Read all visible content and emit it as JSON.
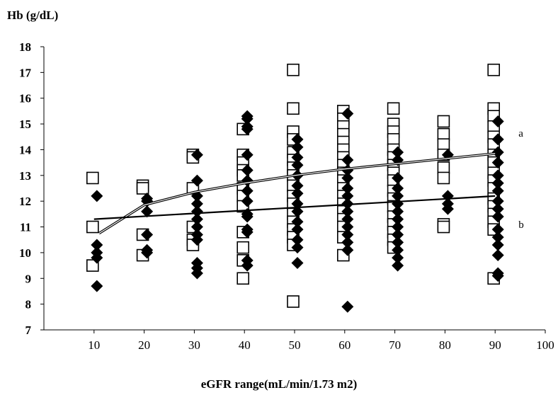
{
  "chart_data": {
    "type": "scatter",
    "title": "",
    "ylabel": "Hb (g/dL)",
    "xlabel": "eGFR range(mL/min/1.73 m2)",
    "xlim": [
      0,
      100
    ],
    "ylim": [
      7,
      18
    ],
    "xticks": [
      10,
      20,
      30,
      40,
      50,
      60,
      70,
      80,
      90,
      100
    ],
    "yticks": [
      7,
      8,
      9,
      10,
      11,
      12,
      13,
      14,
      15,
      16,
      17,
      18
    ],
    "grid": false,
    "legend": "none",
    "series": [
      {
        "marker": "open-square",
        "color": "#000000",
        "points": [
          [
            10,
            12.9
          ],
          [
            10,
            11.0
          ],
          [
            10,
            9.5
          ],
          [
            20,
            12.6
          ],
          [
            20,
            12.5
          ],
          [
            20,
            10.7
          ],
          [
            20,
            9.9
          ],
          [
            30,
            13.8
          ],
          [
            30,
            13.7
          ],
          [
            30,
            12.5
          ],
          [
            30,
            11.0
          ],
          [
            30,
            10.5
          ],
          [
            30,
            10.3
          ],
          [
            40,
            14.8
          ],
          [
            40,
            13.8
          ],
          [
            40,
            13.5
          ],
          [
            40,
            13.2
          ],
          [
            40,
            13.0
          ],
          [
            40,
            12.5
          ],
          [
            40,
            12.2
          ],
          [
            40,
            11.8
          ],
          [
            40,
            10.8
          ],
          [
            40,
            10.2
          ],
          [
            40,
            9.7
          ],
          [
            40,
            9.0
          ],
          [
            50,
            17.1
          ],
          [
            50,
            15.6
          ],
          [
            50,
            14.7
          ],
          [
            50,
            14.4
          ],
          [
            50,
            13.9
          ],
          [
            50,
            13.6
          ],
          [
            50,
            13.3
          ],
          [
            50,
            13.0
          ],
          [
            50,
            12.6
          ],
          [
            50,
            12.2
          ],
          [
            50,
            11.9
          ],
          [
            50,
            11.5
          ],
          [
            50,
            11.2
          ],
          [
            50,
            10.9
          ],
          [
            50,
            10.6
          ],
          [
            50,
            10.3
          ],
          [
            50,
            8.1
          ],
          [
            60,
            15.5
          ],
          [
            60,
            15.2
          ],
          [
            60,
            14.9
          ],
          [
            60,
            14.6
          ],
          [
            60,
            14.3
          ],
          [
            60,
            14.0
          ],
          [
            60,
            13.7
          ],
          [
            60,
            13.4
          ],
          [
            60,
            13.1
          ],
          [
            60,
            12.8
          ],
          [
            60,
            12.5
          ],
          [
            60,
            12.2
          ],
          [
            60,
            11.9
          ],
          [
            60,
            11.6
          ],
          [
            60,
            11.3
          ],
          [
            60,
            11.0
          ],
          [
            60,
            10.6
          ],
          [
            60,
            9.9
          ],
          [
            70,
            15.6
          ],
          [
            70,
            15.0
          ],
          [
            70,
            14.7
          ],
          [
            70,
            14.4
          ],
          [
            70,
            14.0
          ],
          [
            70,
            13.7
          ],
          [
            70,
            13.4
          ],
          [
            70,
            13.1
          ],
          [
            70,
            12.8
          ],
          [
            70,
            12.4
          ],
          [
            70,
            12.1
          ],
          [
            70,
            11.8
          ],
          [
            70,
            11.4
          ],
          [
            70,
            11.1
          ],
          [
            70,
            10.8
          ],
          [
            70,
            10.5
          ],
          [
            70,
            10.2
          ],
          [
            80,
            15.1
          ],
          [
            80,
            14.6
          ],
          [
            80,
            14.2
          ],
          [
            80,
            13.8
          ],
          [
            80,
            13.3
          ],
          [
            80,
            12.9
          ],
          [
            80,
            11.1
          ],
          [
            80,
            11.0
          ],
          [
            90,
            17.1
          ],
          [
            90,
            15.6
          ],
          [
            90,
            15.3
          ],
          [
            90,
            14.9
          ],
          [
            90,
            14.5
          ],
          [
            90,
            14.2
          ],
          [
            90,
            13.8
          ],
          [
            90,
            13.5
          ],
          [
            90,
            13.1
          ],
          [
            90,
            12.8
          ],
          [
            90,
            12.5
          ],
          [
            90,
            12.1
          ],
          [
            90,
            11.8
          ],
          [
            90,
            11.5
          ],
          [
            90,
            11.2
          ],
          [
            90,
            10.9
          ],
          [
            90,
            9.0
          ]
        ]
      },
      {
        "marker": "filled-diamond",
        "color": "#000000",
        "points": [
          [
            10,
            12.2
          ],
          [
            10,
            10.3
          ],
          [
            10,
            10.0
          ],
          [
            10,
            9.8
          ],
          [
            10,
            8.7
          ],
          [
            20,
            12.1
          ],
          [
            20,
            12.0
          ],
          [
            20,
            11.6
          ],
          [
            20,
            10.7
          ],
          [
            20,
            10.1
          ],
          [
            20,
            10.0
          ],
          [
            30,
            13.8
          ],
          [
            30,
            12.8
          ],
          [
            30,
            12.2
          ],
          [
            30,
            11.9
          ],
          [
            30,
            11.6
          ],
          [
            30,
            11.3
          ],
          [
            30,
            11.0
          ],
          [
            30,
            10.7
          ],
          [
            30,
            10.5
          ],
          [
            30,
            9.6
          ],
          [
            30,
            9.4
          ],
          [
            30,
            9.2
          ],
          [
            40,
            15.3
          ],
          [
            40,
            15.2
          ],
          [
            40,
            14.9
          ],
          [
            40,
            14.8
          ],
          [
            40,
            13.8
          ],
          [
            40,
            13.2
          ],
          [
            40,
            12.8
          ],
          [
            40,
            12.4
          ],
          [
            40,
            12.0
          ],
          [
            40,
            11.5
          ],
          [
            40,
            11.4
          ],
          [
            40,
            10.9
          ],
          [
            40,
            10.8
          ],
          [
            40,
            9.7
          ],
          [
            40,
            9.5
          ],
          [
            50,
            14.4
          ],
          [
            50,
            14.1
          ],
          [
            50,
            13.7
          ],
          [
            50,
            13.4
          ],
          [
            50,
            13.0
          ],
          [
            50,
            12.6
          ],
          [
            50,
            12.3
          ],
          [
            50,
            11.9
          ],
          [
            50,
            11.6
          ],
          [
            50,
            11.2
          ],
          [
            50,
            10.9
          ],
          [
            50,
            10.5
          ],
          [
            50,
            10.2
          ],
          [
            50,
            9.6
          ],
          [
            60,
            15.4
          ],
          [
            60,
            13.6
          ],
          [
            60,
            13.2
          ],
          [
            60,
            12.9
          ],
          [
            60,
            12.5
          ],
          [
            60,
            12.2
          ],
          [
            60,
            11.9
          ],
          [
            60,
            11.6
          ],
          [
            60,
            11.3
          ],
          [
            60,
            11.0
          ],
          [
            60,
            10.7
          ],
          [
            60,
            10.4
          ],
          [
            60,
            10.1
          ],
          [
            60,
            7.9
          ],
          [
            70,
            13.9
          ],
          [
            70,
            13.6
          ],
          [
            70,
            12.9
          ],
          [
            70,
            12.5
          ],
          [
            70,
            12.2
          ],
          [
            70,
            11.9
          ],
          [
            70,
            11.6
          ],
          [
            70,
            11.3
          ],
          [
            70,
            11.0
          ],
          [
            70,
            10.7
          ],
          [
            70,
            10.4
          ],
          [
            70,
            10.1
          ],
          [
            70,
            9.8
          ],
          [
            70,
            9.5
          ],
          [
            80,
            13.8
          ],
          [
            80,
            12.2
          ],
          [
            80,
            11.9
          ],
          [
            80,
            11.7
          ],
          [
            90,
            15.1
          ],
          [
            90,
            14.4
          ],
          [
            90,
            13.9
          ],
          [
            90,
            13.5
          ],
          [
            90,
            13.0
          ],
          [
            90,
            12.7
          ],
          [
            90,
            12.4
          ],
          [
            90,
            12.0
          ],
          [
            90,
            11.7
          ],
          [
            90,
            11.4
          ],
          [
            90,
            10.9
          ],
          [
            90,
            10.6
          ],
          [
            90,
            10.3
          ],
          [
            90,
            9.9
          ],
          [
            90,
            9.2
          ],
          [
            90,
            9.1
          ]
        ]
      }
    ],
    "trendlines": [
      {
        "label": "a",
        "kind": "logarithmic",
        "x": [
          11,
          20,
          30,
          40,
          50,
          60,
          70,
          80,
          90
        ],
        "y": [
          10.75,
          11.85,
          12.35,
          12.7,
          13.0,
          13.25,
          13.45,
          13.65,
          13.85
        ]
      },
      {
        "label": "b",
        "kind": "linear",
        "x": [
          10,
          90
        ],
        "y": [
          11.3,
          12.2
        ]
      }
    ]
  }
}
